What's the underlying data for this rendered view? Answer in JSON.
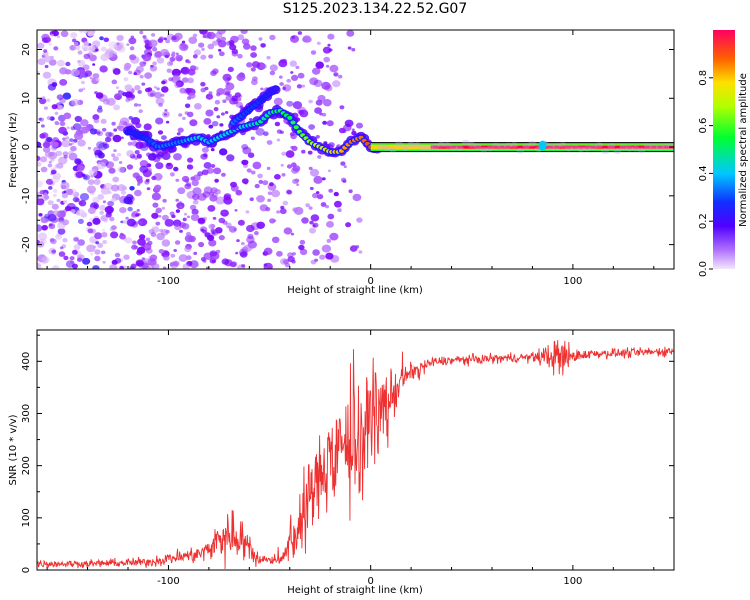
{
  "title": "S125.2023.134.22.52.G07",
  "chart_data": [
    {
      "type": "heatmap",
      "xlabel": "Height of straight line (km)",
      "ylabel": "Frequency (Hz)",
      "xlim": [
        -165,
        150
      ],
      "ylim": [
        -25,
        24
      ],
      "xticks": [
        -100,
        0,
        100
      ],
      "yticks": [
        -20,
        -10,
        0,
        10,
        20
      ],
      "colorbar": {
        "label": "Normalized spectral amplitude",
        "range": [
          0,
          1
        ],
        "ticks": [
          0.0,
          0.2,
          0.4,
          0.6,
          0.8
        ],
        "colormap": [
          "#e8d0f8",
          "#7b00ff",
          "#1a1aff",
          "#00c8ff",
          "#00ff40",
          "#c8ff00",
          "#ffd000",
          "#ff5000",
          "#ff0040"
        ]
      },
      "ridge": {
        "x": [
          -118,
          -110,
          -105,
          -100,
          -95,
          -90,
          -85,
          -80,
          -75,
          -70,
          -65,
          -60,
          -55,
          -50,
          -45,
          -40,
          -35,
          -30,
          -25,
          -20,
          -15,
          -10,
          -5,
          0,
          10,
          20,
          40,
          60,
          80,
          100,
          120,
          150
        ],
        "y": [
          3,
          1.5,
          0,
          0.5,
          1,
          1.5,
          2,
          1,
          2,
          3,
          4,
          4.5,
          5,
          7,
          7.5,
          6,
          3,
          1,
          0,
          -1,
          -1,
          1,
          2,
          0,
          0,
          0,
          0,
          0,
          0,
          0,
          0,
          0
        ],
        "amplitude": [
          0.25,
          0.3,
          0.35,
          0.35,
          0.35,
          0.4,
          0.45,
          0.4,
          0.45,
          0.45,
          0.45,
          0.45,
          0.5,
          0.5,
          0.55,
          0.55,
          0.6,
          0.65,
          0.7,
          0.75,
          0.8,
          0.85,
          0.85,
          0.9,
          0.95,
          0.95,
          0.95,
          0.95,
          0.95,
          0.95,
          0.95,
          0.95
        ]
      },
      "branch": {
        "x": [
          -68,
          -62,
          -56,
          -50,
          -47
        ],
        "y": [
          5,
          7,
          9,
          11,
          12
        ],
        "amplitude": [
          0.35,
          0.3,
          0.3,
          0.25,
          0.2
        ]
      }
    },
    {
      "type": "line",
      "xlabel": "Height of straight line (km)",
      "ylabel": "SNR (10 * v/v)",
      "xlim": [
        -165,
        150
      ],
      "ylim": [
        0,
        460
      ],
      "xticks": [
        -100,
        0,
        100
      ],
      "yticks": [
        0,
        100,
        200,
        300,
        400
      ],
      "color": "#ee3030",
      "envelope": {
        "x": [
          -165,
          -140,
          -110,
          -95,
          -85,
          -80,
          -75,
          -72,
          -68,
          -63,
          -58,
          -52,
          -48,
          -44,
          -40,
          -35,
          -30,
          -25,
          -20,
          -15,
          -10,
          -5,
          0,
          5,
          10,
          15,
          20,
          25,
          30,
          40,
          60,
          80,
          90,
          95,
          100,
          110,
          130,
          150
        ],
        "mean": [
          12,
          12,
          15,
          25,
          30,
          40,
          60,
          70,
          70,
          55,
          30,
          18,
          16,
          25,
          45,
          80,
          140,
          180,
          220,
          230,
          245,
          270,
          290,
          305,
          330,
          360,
          380,
          390,
          398,
          402,
          405,
          408,
          410,
          405,
          410,
          415,
          416,
          420
        ],
        "noise": [
          6,
          6,
          8,
          12,
          14,
          20,
          35,
          40,
          40,
          30,
          15,
          8,
          8,
          12,
          25,
          50,
          70,
          70,
          70,
          75,
          80,
          80,
          70,
          60,
          50,
          25,
          15,
          10,
          8,
          8,
          8,
          8,
          25,
          45,
          10,
          8,
          8,
          8
        ]
      }
    }
  ]
}
